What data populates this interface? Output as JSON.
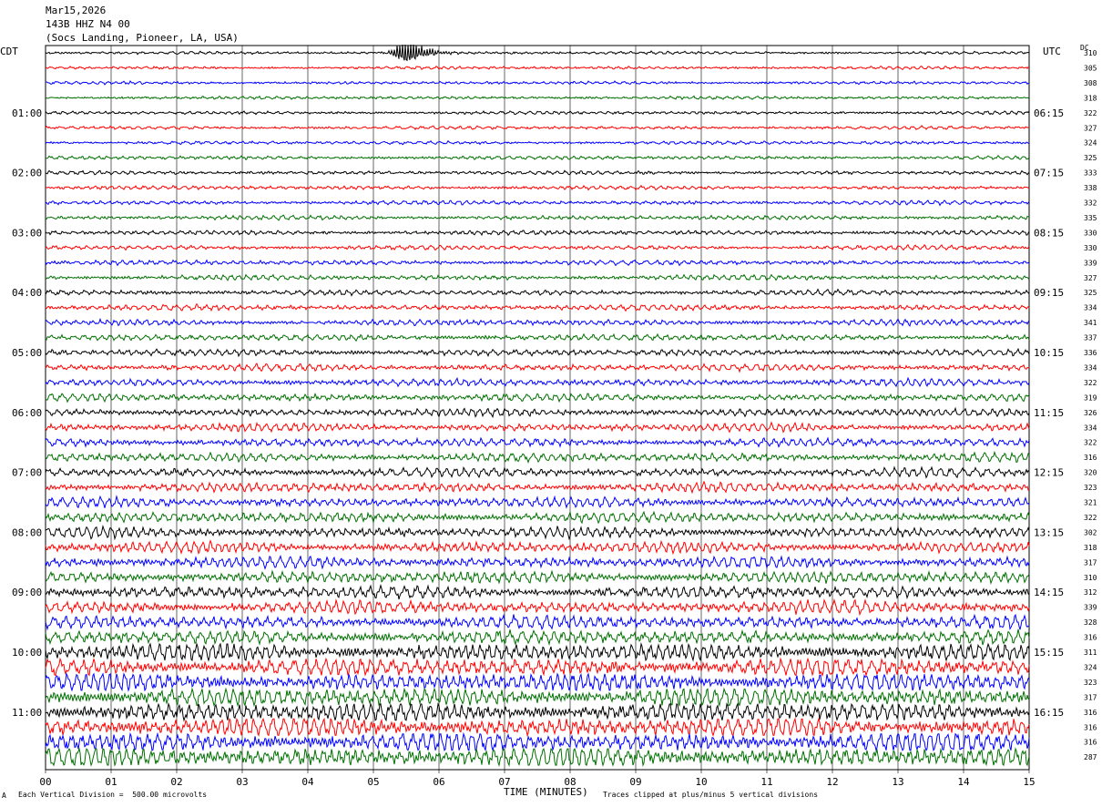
{
  "header": {
    "date": "Mar15,2026",
    "station": "143B HHZ N4 00",
    "location": "(Socs Landing, Pioneer, LA, USA)"
  },
  "left_axis_label": "CDT",
  "right_axis_label": "UTC",
  "dc_label": "DC",
  "footer": {
    "xlabel": "TIME (MINUTES)",
    "scale_note": "Each Vertical Division =  500.00 microvolts",
    "clip_note": "Traces clipped at plus/minus 5 vertical divisions",
    "corner_mark": "A"
  },
  "colors": {
    "trace_cycle": [
      "#000000",
      "#ff0000",
      "#0000ff",
      "#007000"
    ],
    "grid": "#000000",
    "background": "#ffffff"
  },
  "chart_data": {
    "type": "line",
    "x_ticks": [
      "00",
      "01",
      "02",
      "03",
      "04",
      "05",
      "06",
      "07",
      "08",
      "09",
      "10",
      "11",
      "12",
      "13",
      "14",
      "15"
    ],
    "x_range_minutes": [
      0,
      15
    ],
    "trace_count": 48,
    "traces_per_hour": 4,
    "left_hour_labels": [
      "01:00",
      "02:00",
      "03:00",
      "04:00",
      "05:00",
      "06:00",
      "07:00",
      "08:00",
      "09:00",
      "10:00",
      "11:00"
    ],
    "right_hour_labels": [
      "06:15",
      "07:15",
      "08:15",
      "09:15",
      "10:15",
      "11:15",
      "12:15",
      "13:15",
      "14:15",
      "15:15",
      "16:15"
    ],
    "dc_offsets": [
      310,
      305,
      308,
      318,
      322,
      327,
      324,
      325,
      333,
      338,
      332,
      335,
      330,
      330,
      339,
      327,
      325,
      334,
      341,
      337,
      336,
      334,
      322,
      319,
      326,
      334,
      322,
      316,
      320,
      323,
      321,
      322,
      302,
      318,
      317,
      310,
      312,
      339,
      328,
      316,
      311,
      324,
      323,
      317,
      316,
      316,
      316,
      287
    ],
    "event": {
      "trace_index": 0,
      "start_minute": 5.2,
      "peak_minute": 5.5,
      "end_minute": 6.3
    },
    "grid": true
  }
}
